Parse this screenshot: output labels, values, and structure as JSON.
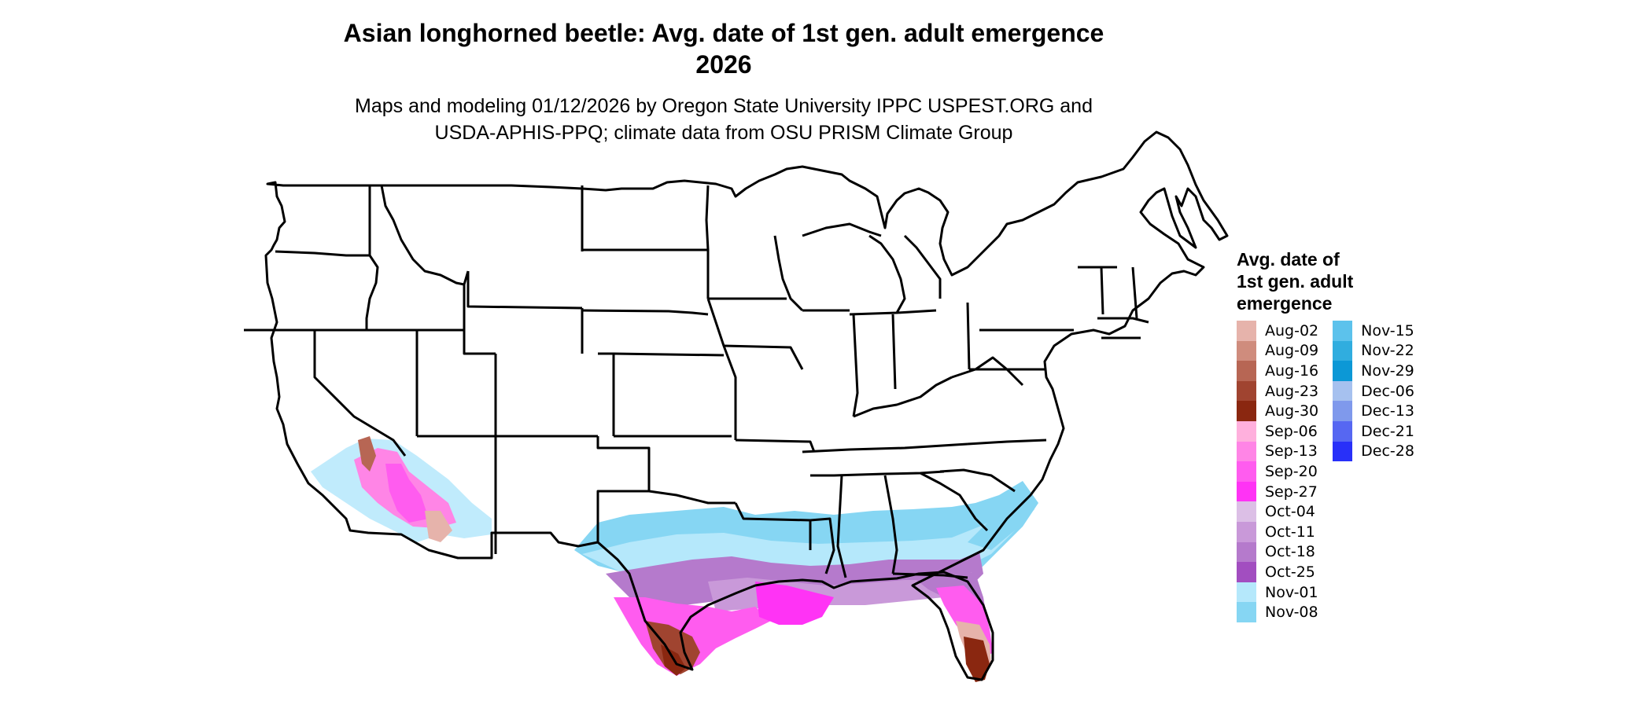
{
  "title": {
    "line1": "Asian longhorned beetle: Avg. date of 1st gen. adult emergence",
    "line2": "2026"
  },
  "subtitle": {
    "line1": "Maps and modeling 01/12/2026 by Oregon State University IPPC USPEST.ORG and",
    "line2": "USDA-APHIS-PPQ; climate data from OSU PRISM Climate Group"
  },
  "legend": {
    "title_lines": [
      "Avg. date of",
      "1st gen. adult",
      "emergence"
    ],
    "columns": [
      [
        {
          "label": "Aug-02",
          "color": "#e6b3ab"
        },
        {
          "label": "Aug-09",
          "color": "#cf8c7d"
        },
        {
          "label": "Aug-16",
          "color": "#b76654"
        },
        {
          "label": "Aug-23",
          "color": "#a04430"
        },
        {
          "label": "Aug-30",
          "color": "#8a2710"
        },
        {
          "label": "Sep-06",
          "color": "#ffb0dd"
        },
        {
          "label": "Sep-13",
          "color": "#ff85e6"
        },
        {
          "label": "Sep-20",
          "color": "#ff5cef"
        },
        {
          "label": "Sep-27",
          "color": "#ff33f5"
        },
        {
          "label": "Oct-04",
          "color": "#dcbfe6"
        },
        {
          "label": "Oct-11",
          "color": "#c999d9"
        },
        {
          "label": "Oct-18",
          "color": "#b57acc"
        },
        {
          "label": "Oct-25",
          "color": "#a24ec0"
        },
        {
          "label": "Nov-01",
          "color": "#b5e8fb"
        },
        {
          "label": "Nov-08",
          "color": "#86d6f3"
        }
      ],
      [
        {
          "label": "Nov-15",
          "color": "#5cc2ec"
        },
        {
          "label": "Nov-22",
          "color": "#30addf"
        },
        {
          "label": "Nov-29",
          "color": "#0c98d6"
        },
        {
          "label": "Dec-06",
          "color": "#a6c1ef"
        },
        {
          "label": "Dec-13",
          "color": "#7f99ec"
        },
        {
          "label": "Dec-21",
          "color": "#5667f2"
        },
        {
          "label": "Dec-28",
          "color": "#2830f9"
        }
      ]
    ]
  },
  "colors": {
    "state_border": "#000000",
    "background": "#ffffff"
  }
}
